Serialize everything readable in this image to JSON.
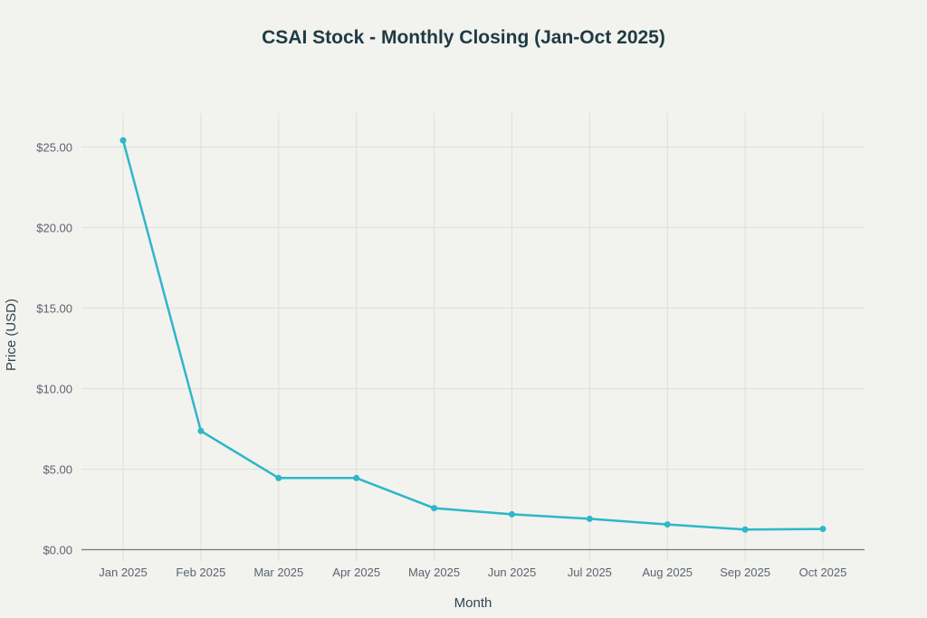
{
  "chart_data": {
    "type": "line",
    "title": "CSAI Stock - Monthly Closing (Jan-Oct 2025)",
    "xlabel": "Month",
    "ylabel": "Price (USD)",
    "categories": [
      "Jan 2025",
      "Feb 2025",
      "Mar 2025",
      "Apr 2025",
      "May 2025",
      "Jun 2025",
      "Jul 2025",
      "Aug 2025",
      "Sep 2025",
      "Oct 2025"
    ],
    "values": [
      25.41,
      7.37,
      4.45,
      4.45,
      2.58,
      2.2,
      1.92,
      1.57,
      1.25,
      1.29
    ],
    "yticks": [
      0,
      5,
      10,
      15,
      20,
      25
    ],
    "ytick_labels": [
      "$0.00",
      "$5.00",
      "$10.00",
      "$15.00",
      "$20.00",
      "$25.00"
    ],
    "ylim": [
      -0.7,
      27.1
    ],
    "grid": true,
    "line_color": "#2db7c9",
    "legend": "none"
  }
}
